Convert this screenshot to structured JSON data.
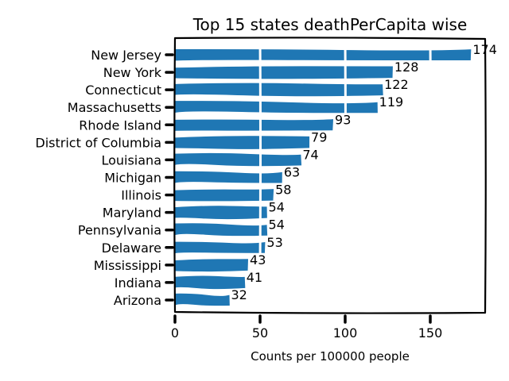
{
  "chart_data": {
    "type": "bar",
    "orientation": "horizontal",
    "title": "Top 15 states deathPerCapita wise",
    "xlabel": "Counts per 100000 people",
    "ylabel": "",
    "categories": [
      "New Jersey",
      "New York",
      "Connecticut",
      "Massachusetts",
      "Rhode Island",
      "District of Columbia",
      "Louisiana",
      "Michigan",
      "Illinois",
      "Maryland",
      "Pennsylvania",
      "Delaware",
      "Mississippi",
      "Indiana",
      "Arizona"
    ],
    "values": [
      174,
      128,
      122,
      119,
      93,
      79,
      74,
      63,
      58,
      54,
      54,
      53,
      43,
      41,
      32
    ],
    "data_labels": [
      "174",
      "128",
      "122",
      "119",
      "93",
      "79",
      "74",
      "63",
      "58",
      "54",
      "54",
      "53",
      "43",
      "41",
      "32"
    ],
    "xticks": [
      0,
      50,
      100,
      150
    ],
    "xtick_labels": [
      "0",
      "50",
      "100",
      "150"
    ],
    "xlim": [
      0,
      183
    ],
    "grid": true,
    "grid_color": "#ffffff",
    "bar_color": "#1f77b4",
    "style": "xkcd"
  }
}
